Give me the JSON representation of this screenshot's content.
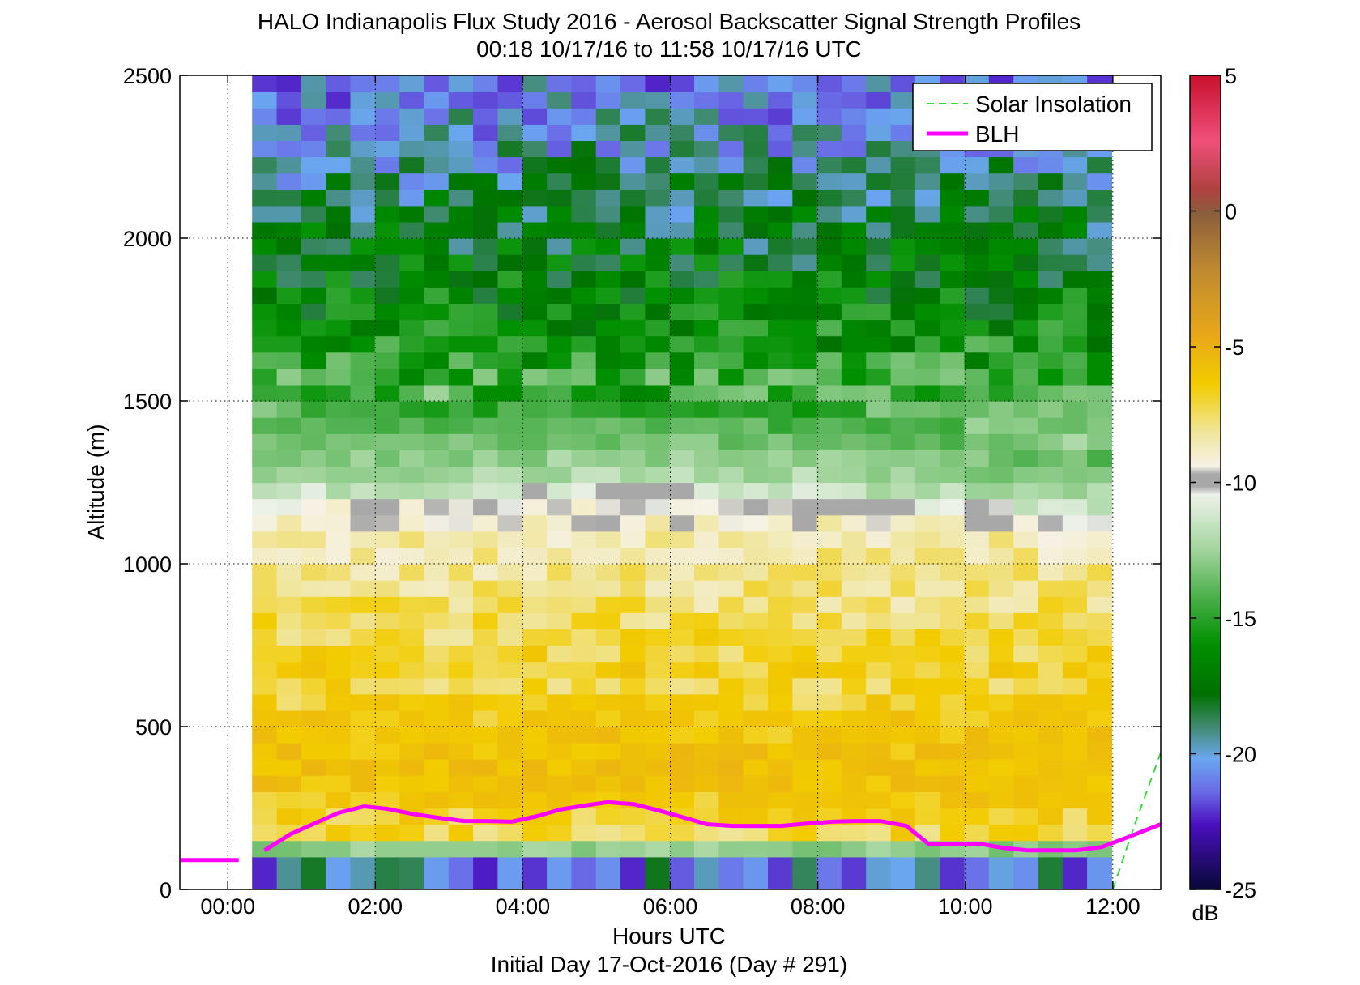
{
  "chart_data": {
    "type": "heatmap",
    "title": "HALO Indianapolis Flux Study 2016 - Aerosol Backscatter Signal Strength Profiles",
    "subtitle": "00:18 10/17/16 to 11:58 10/17/16  UTC",
    "xlabel": "Hours UTC",
    "xlabel2": "Initial Day 17-Oct-2016 (Day # 291)",
    "ylabel": "Altitude (m)",
    "xlim": [
      -0.65,
      12.65
    ],
    "ylim": [
      0,
      2500
    ],
    "x_ticks": [
      0,
      2,
      4,
      6,
      8,
      10,
      12
    ],
    "x_tick_labels": [
      "00:00",
      "02:00",
      "04:00",
      "06:00",
      "08:00",
      "10:00",
      "12:00"
    ],
    "y_ticks": [
      0,
      500,
      1000,
      1500,
      2000,
      2500
    ],
    "y_tick_labels": [
      "0",
      "500",
      "1000",
      "1500",
      "2000",
      "2500"
    ],
    "grid": "dotted",
    "legend_position": "top-right",
    "colorbar": {
      "label": "dB",
      "range": [
        -25,
        5
      ],
      "ticks": [
        5,
        0,
        -5,
        -10,
        -15,
        -20,
        -25
      ],
      "tick_labels": [
        "5",
        "0",
        "-5",
        "-10",
        "-15",
        "-20",
        "-25"
      ]
    },
    "heatmap": {
      "x_start": 0.33,
      "x_step": 0.333,
      "y_step": 50,
      "altitudes_profile": [
        [
          100,
          -17
        ],
        [
          150,
          -8
        ],
        [
          250,
          -7.5
        ],
        [
          350,
          -6.8
        ],
        [
          500,
          -7.2
        ],
        [
          650,
          -8
        ],
        [
          800,
          -8.7
        ],
        [
          950,
          -9.2
        ],
        [
          1100,
          -9.5
        ],
        [
          1250,
          -11.5
        ],
        [
          1400,
          -12.5
        ],
        [
          1550,
          -14
        ],
        [
          1700,
          -15.5
        ],
        [
          1900,
          -16.5
        ],
        [
          2100,
          -17.5
        ],
        [
          2300,
          -19
        ],
        [
          2500,
          -20
        ]
      ]
    },
    "series": [
      {
        "name": "Solar Insolation",
        "style": "dashed",
        "color": "#33dd33",
        "x": [
          12.0,
          12.3,
          12.65
        ],
        "y": [
          0,
          200,
          420
        ]
      },
      {
        "name": "BLH",
        "style": "solid",
        "color": "#ff00ff",
        "x": [
          -0.65,
          0.15
        ],
        "y": [
          90,
          90
        ],
        "x2": [
          0.5,
          0.85,
          1.2,
          1.5,
          1.85,
          2.15,
          2.5,
          2.8,
          3.2,
          3.5,
          3.85,
          4.2,
          4.5,
          4.85,
          5.15,
          5.5,
          5.85,
          6.2,
          6.5,
          6.85,
          7.2,
          7.5,
          7.85,
          8.2,
          8.5,
          8.85,
          9.2,
          9.5,
          9.85,
          10.2,
          10.5,
          10.85,
          11.2,
          11.5,
          11.85,
          12.2,
          12.65
        ],
        "y2": [
          120,
          170,
          205,
          235,
          255,
          248,
          232,
          222,
          210,
          210,
          208,
          225,
          245,
          258,
          268,
          262,
          242,
          220,
          200,
          195,
          195,
          195,
          202,
          208,
          210,
          210,
          195,
          140,
          140,
          140,
          128,
          120,
          120,
          120,
          130,
          160,
          200
        ]
      }
    ]
  }
}
